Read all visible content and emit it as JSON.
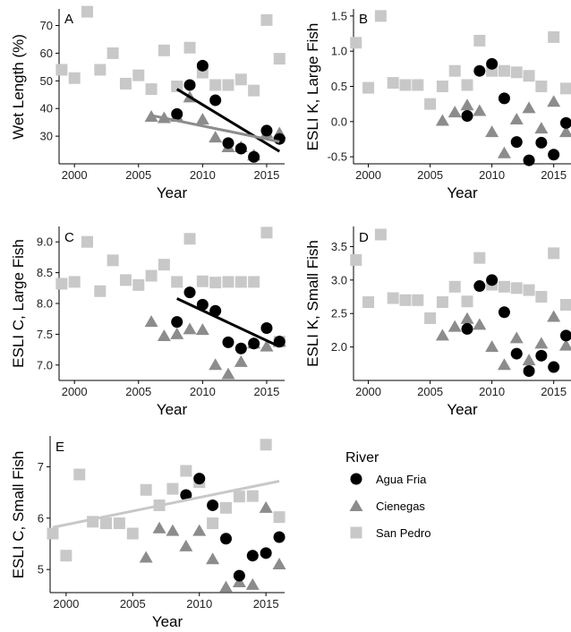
{
  "colors": {
    "agua_fria": "#000000",
    "cienegas": "#8c8c8c",
    "san_pedro": "#c8c8c8",
    "axis": "#000000"
  },
  "legend": {
    "title": "River",
    "entries": [
      {
        "label": "Agua Fria",
        "shape": "circle",
        "color": "#000000"
      },
      {
        "label": "Cienegas",
        "shape": "triangle",
        "color": "#8c8c8c"
      },
      {
        "label": "San Pedro",
        "shape": "square",
        "color": "#c8c8c8"
      }
    ]
  },
  "chart_data": [
    {
      "panel": "A",
      "type": "scatter",
      "xlabel": "Year",
      "ylabel": "Wet Length (%)",
      "xlim": [
        1998.8,
        2016.4
      ],
      "ylim": [
        20,
        76
      ],
      "xticks": [
        2000,
        2005,
        2010,
        2015
      ],
      "yticks": [
        30,
        40,
        50,
        60,
        70
      ],
      "series": [
        {
          "name": "Agua Fria",
          "shape": "circle",
          "x": [
            2008,
            2009,
            2010,
            2011,
            2012,
            2013,
            2014,
            2015,
            2016
          ],
          "y": [
            38,
            48.5,
            55.5,
            43,
            27.5,
            25.5,
            22.5,
            32,
            29
          ]
        },
        {
          "name": "Cienegas",
          "shape": "triangle",
          "x": [
            2006,
            2007,
            2008,
            2009,
            2010,
            2011,
            2012,
            2013,
            2014,
            2015,
            2016
          ],
          "y": [
            37,
            36.5,
            37,
            44,
            36,
            29.5,
            26,
            26,
            23,
            31,
            31
          ]
        },
        {
          "name": "San Pedro",
          "shape": "square",
          "x": [
            1999,
            2000,
            2001,
            2002,
            2003,
            2004,
            2005,
            2006,
            2007,
            2008,
            2009,
            2010,
            2011,
            2012,
            2013,
            2014,
            2015,
            2016
          ],
          "y": [
            54,
            51,
            75,
            54,
            60,
            49,
            52,
            47,
            61,
            48,
            62,
            53,
            48.5,
            48.5,
            50.5,
            46.5,
            72,
            58
          ]
        }
      ],
      "trendlines": [
        {
          "series": "Agua Fria",
          "x": [
            2008,
            2016
          ],
          "y": [
            47,
            24.5
          ]
        },
        {
          "series": "Cienegas",
          "x": [
            2006,
            2016
          ],
          "y": [
            37.5,
            28
          ]
        }
      ]
    },
    {
      "panel": "B",
      "type": "scatter",
      "xlabel": "Year",
      "ylabel": "ESLI K, Large Fish",
      "xlim": [
        1998.8,
        2016.4
      ],
      "ylim": [
        -0.6,
        1.6
      ],
      "xticks": [
        2000,
        2005,
        2010,
        2015
      ],
      "yticks": [
        -0.5,
        0.0,
        0.5,
        1.0,
        1.5
      ],
      "yticklabels": [
        "-0.5",
        "0.0",
        "0.5",
        "1.0",
        "1.5"
      ],
      "series": [
        {
          "name": "Agua Fria",
          "shape": "circle",
          "x": [
            2008,
            2009,
            2010,
            2011,
            2012,
            2013,
            2014,
            2015,
            2016
          ],
          "y": [
            0.08,
            0.72,
            0.82,
            0.33,
            -0.29,
            -0.55,
            -0.3,
            -0.47,
            -0.02
          ]
        },
        {
          "name": "Cienegas",
          "shape": "triangle",
          "x": [
            2006,
            2007,
            2008,
            2009,
            2010,
            2011,
            2012,
            2013,
            2014,
            2015,
            2016
          ],
          "y": [
            0.01,
            0.13,
            0.23,
            0.15,
            -0.15,
            -0.45,
            0.03,
            0.19,
            -0.1,
            0.28,
            -0.15
          ]
        },
        {
          "name": "San Pedro",
          "shape": "square",
          "x": [
            1999,
            2000,
            2001,
            2002,
            2003,
            2004,
            2005,
            2006,
            2007,
            2008,
            2009,
            2010,
            2011,
            2012,
            2013,
            2014,
            2015,
            2016
          ],
          "y": [
            1.12,
            0.48,
            1.5,
            0.55,
            0.52,
            0.52,
            0.25,
            0.5,
            0.72,
            0.52,
            1.15,
            0.72,
            0.72,
            0.7,
            0.65,
            0.5,
            1.2,
            0.47
          ]
        }
      ]
    },
    {
      "panel": "C",
      "type": "scatter",
      "xlabel": "Year",
      "ylabel": "ESLI C, Large Fish",
      "xlim": [
        1998.8,
        2016.4
      ],
      "ylim": [
        6.75,
        9.25
      ],
      "xticks": [
        2000,
        2005,
        2010,
        2015
      ],
      "yticks": [
        7.0,
        7.5,
        8.0,
        8.5,
        9.0
      ],
      "yticklabels": [
        "7.0",
        "7.5",
        "8.0",
        "8.5",
        "9.0"
      ],
      "series": [
        {
          "name": "Agua Fria",
          "shape": "circle",
          "x": [
            2008,
            2009,
            2010,
            2011,
            2012,
            2013,
            2014,
            2015,
            2016
          ],
          "y": [
            7.7,
            8.18,
            7.98,
            7.88,
            7.37,
            7.27,
            7.35,
            7.6,
            7.38
          ]
        },
        {
          "name": "Cienegas",
          "shape": "triangle",
          "x": [
            2006,
            2007,
            2008,
            2009,
            2010,
            2011,
            2012,
            2013,
            2014,
            2015,
            2016
          ],
          "y": [
            7.7,
            7.47,
            7.5,
            7.58,
            7.57,
            7.0,
            6.85,
            7.05,
            7.35,
            7.3,
            7.38
          ]
        },
        {
          "name": "San Pedro",
          "shape": "square",
          "x": [
            1999,
            2000,
            2001,
            2002,
            2003,
            2004,
            2005,
            2006,
            2007,
            2008,
            2009,
            2010,
            2011,
            2012,
            2013,
            2014,
            2015,
            2016
          ],
          "y": [
            8.32,
            8.35,
            9.0,
            8.2,
            8.7,
            8.38,
            8.3,
            8.45,
            8.63,
            8.35,
            9.05,
            8.36,
            8.34,
            8.35,
            8.35,
            8.35,
            9.15,
            7.38
          ]
        }
      ],
      "trendlines": [
        {
          "series": "Agua Fria",
          "x": [
            2008,
            2016
          ],
          "y": [
            8.08,
            7.3
          ]
        }
      ]
    },
    {
      "panel": "D",
      "type": "scatter",
      "xlabel": "Year",
      "ylabel": "ESLI K, Small Fish",
      "xlim": [
        1998.8,
        2016.4
      ],
      "ylim": [
        1.5,
        3.8
      ],
      "xticks": [
        2000,
        2005,
        2010,
        2015
      ],
      "yticks": [
        2.0,
        2.5,
        3.0,
        3.5
      ],
      "yticklabels": [
        "2.0",
        "2.5",
        "3.0",
        "3.5"
      ],
      "series": [
        {
          "name": "Agua Fria",
          "shape": "circle",
          "x": [
            2008,
            2009,
            2010,
            2011,
            2012,
            2013,
            2014,
            2015,
            2016
          ],
          "y": [
            2.27,
            2.91,
            3.0,
            2.52,
            1.9,
            1.64,
            1.87,
            1.7,
            2.17
          ]
        },
        {
          "name": "Cienegas",
          "shape": "triangle",
          "x": [
            2006,
            2007,
            2008,
            2009,
            2010,
            2011,
            2012,
            2013,
            2014,
            2015,
            2016
          ],
          "y": [
            2.17,
            2.3,
            2.42,
            2.33,
            2.0,
            1.73,
            2.13,
            1.8,
            2.05,
            2.45,
            2.02
          ]
        },
        {
          "name": "San Pedro",
          "shape": "square",
          "x": [
            1999,
            2000,
            2001,
            2002,
            2003,
            2004,
            2005,
            2006,
            2007,
            2008,
            2009,
            2010,
            2011,
            2012,
            2013,
            2014,
            2015,
            2016
          ],
          "y": [
            3.3,
            2.67,
            3.68,
            2.73,
            2.7,
            2.7,
            2.43,
            2.67,
            2.9,
            2.68,
            3.33,
            2.93,
            2.9,
            2.88,
            2.85,
            2.75,
            3.4,
            2.63
          ]
        }
      ]
    },
    {
      "panel": "E",
      "type": "scatter",
      "xlabel": "Year",
      "ylabel": "ESLI C, Small Fish",
      "xlim": [
        1998.8,
        2016.4
      ],
      "ylim": [
        4.55,
        7.6
      ],
      "xticks": [
        2000,
        2005,
        2010,
        2015
      ],
      "yticks": [
        5,
        6,
        7
      ],
      "series": [
        {
          "name": "Agua Fria",
          "shape": "circle",
          "x": [
            2009,
            2010,
            2011,
            2012,
            2013,
            2014,
            2015,
            2016
          ],
          "y": [
            6.45,
            6.77,
            6.25,
            5.6,
            4.88,
            5.27,
            5.32,
            5.63
          ]
        },
        {
          "name": "Cienegas",
          "shape": "triangle",
          "x": [
            2006,
            2007,
            2008,
            2009,
            2010,
            2011,
            2012,
            2013,
            2014,
            2015,
            2016
          ],
          "y": [
            5.23,
            5.8,
            5.75,
            5.45,
            5.75,
            5.2,
            4.65,
            4.75,
            4.7,
            6.2,
            5.1
          ]
        },
        {
          "name": "San Pedro",
          "shape": "square",
          "x": [
            1999,
            2000,
            2001,
            2002,
            2003,
            2004,
            2005,
            2006,
            2007,
            2008,
            2009,
            2010,
            2011,
            2012,
            2013,
            2014,
            2015,
            2016
          ],
          "y": [
            5.7,
            5.27,
            6.85,
            5.93,
            5.9,
            5.9,
            5.7,
            6.55,
            6.25,
            6.57,
            6.92,
            6.7,
            5.9,
            6.2,
            6.42,
            6.43,
            7.43,
            6.02
          ]
        }
      ],
      "trendlines": [
        {
          "series": "San Pedro",
          "x": [
            1999,
            2016
          ],
          "y": [
            5.82,
            6.72
          ]
        }
      ]
    }
  ]
}
